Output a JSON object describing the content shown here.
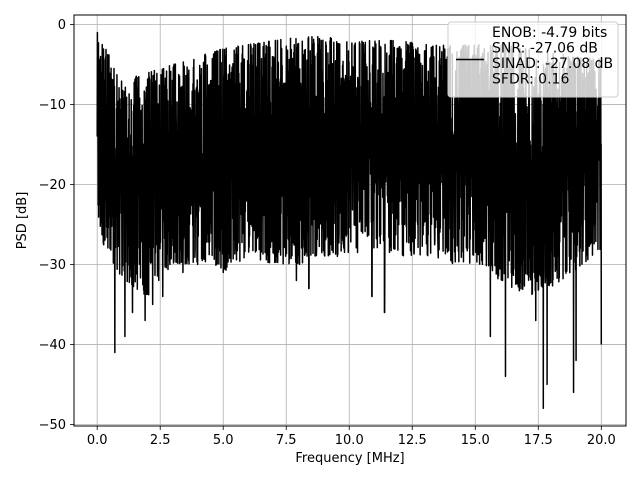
{
  "chart_data": {
    "type": "line",
    "title": "",
    "xlabel": "Frequency [MHz]",
    "ylabel": "PSD [dB]",
    "xlim": [
      -0.92,
      20.98
    ],
    "ylim": [
      -50.2,
      1.2
    ],
    "xticks": [
      0.0,
      2.5,
      5.0,
      7.5,
      10.0,
      12.5,
      15.0,
      17.5,
      20.0
    ],
    "xtick_labels": [
      "0.0",
      "2.5",
      "5.0",
      "7.5",
      "10.0",
      "12.5",
      "15.0",
      "17.5",
      "20.0"
    ],
    "yticks": [
      0,
      -10,
      -20,
      -30,
      -40,
      -50
    ],
    "ytick_labels": [
      "0",
      "−10",
      "−20",
      "−30",
      "−40",
      "−50"
    ],
    "grid": true,
    "legend": {
      "placement": "top-right",
      "entries": [
        "ENOB: -4.79 bits",
        "SNR: -27.06 dB",
        "SINAD: -27.08 dB",
        "SFDR: 0.16"
      ]
    },
    "series": [
      {
        "color": "#000000",
        "x_range": [
          0.0,
          20.0
        ],
        "n_points": 2400,
        "upper_envelope_db": [
          -1.0,
          -7,
          -6,
          -5,
          -4,
          -3,
          -2.5,
          -2,
          -1.5,
          -1.5,
          -2,
          -2,
          -2,
          -2.5,
          -2.5,
          -2.5,
          -2.5,
          -3,
          -3.5,
          -4,
          -4
        ],
        "lower_envelope_db": [
          -26,
          -32,
          -34,
          -30,
          -30,
          -31,
          -29,
          -30,
          -30,
          -29,
          -29,
          -28,
          -29,
          -29,
          -30,
          -30,
          -32,
          -34,
          -33,
          -31,
          -28
        ],
        "deep_nulls": [
          {
            "x": 0.7,
            "y": -41
          },
          {
            "x": 1.1,
            "y": -39
          },
          {
            "x": 1.4,
            "y": -36
          },
          {
            "x": 1.9,
            "y": -37
          },
          {
            "x": 2.2,
            "y": -35
          },
          {
            "x": 2.6,
            "y": -34
          },
          {
            "x": 3.4,
            "y": -31
          },
          {
            "x": 5.0,
            "y": -31
          },
          {
            "x": 7.9,
            "y": -32
          },
          {
            "x": 8.4,
            "y": -33
          },
          {
            "x": 10.9,
            "y": -34
          },
          {
            "x": 11.4,
            "y": -36
          },
          {
            "x": 15.6,
            "y": -39
          },
          {
            "x": 16.2,
            "y": -44
          },
          {
            "x": 17.4,
            "y": -37
          },
          {
            "x": 17.7,
            "y": -48
          },
          {
            "x": 17.85,
            "y": -45
          },
          {
            "x": 18.9,
            "y": -46
          },
          {
            "x": 19.0,
            "y": -42
          },
          {
            "x": 20.0,
            "y": -40
          }
        ]
      }
    ]
  }
}
